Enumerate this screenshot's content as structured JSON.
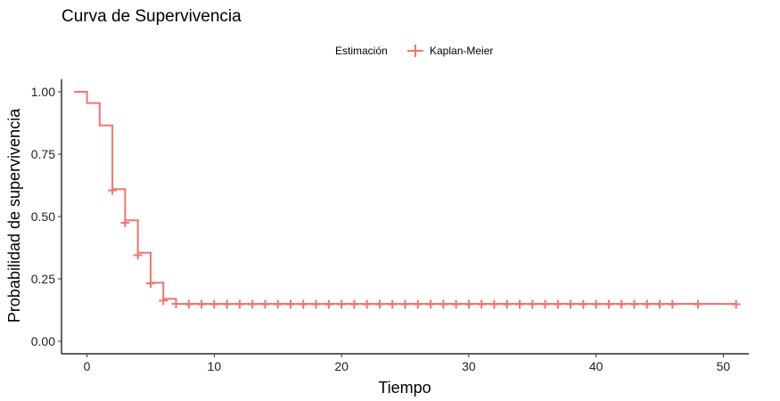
{
  "chart_data": {
    "type": "line",
    "step": true,
    "title": "Curva de Supervivencia",
    "xlabel": "Tiempo",
    "ylabel": "Probabilidad de supervivencia",
    "xlim": [
      -2,
      52
    ],
    "ylim": [
      -0.05,
      1.05
    ],
    "xticks": [
      0,
      10,
      20,
      30,
      40,
      50
    ],
    "yticks": [
      0.0,
      0.25,
      0.5,
      0.75,
      1.0
    ],
    "ytick_labels": [
      "0.00",
      "0.25",
      "0.50",
      "0.75",
      "1.00"
    ],
    "xtick_labels": [
      "0",
      "10",
      "20",
      "30",
      "40",
      "50"
    ],
    "grid": false,
    "legend": {
      "position": "top",
      "title": "Estimación",
      "entries": [
        "Kaplan-Meier"
      ]
    },
    "series": [
      {
        "name": "Kaplan-Meier",
        "color": "#F0766D",
        "steps": [
          [
            -1,
            1.0
          ],
          [
            0,
            0.955
          ],
          [
            1,
            0.865
          ],
          [
            2,
            0.61
          ],
          [
            3,
            0.485
          ],
          [
            4,
            0.355
          ],
          [
            5,
            0.235
          ],
          [
            6,
            0.17
          ],
          [
            7,
            0.15
          ],
          [
            51,
            0.15
          ]
        ],
        "censor_marks": [
          [
            2,
            0.605
          ],
          [
            3,
            0.475
          ],
          [
            4,
            0.345
          ],
          [
            5,
            0.232
          ],
          [
            6,
            0.163
          ],
          [
            7,
            0.15
          ],
          [
            8,
            0.148
          ],
          [
            9,
            0.148
          ],
          [
            10,
            0.148
          ],
          [
            11,
            0.148
          ],
          [
            12,
            0.148
          ],
          [
            13,
            0.148
          ],
          [
            14,
            0.148
          ],
          [
            15,
            0.148
          ],
          [
            16,
            0.148
          ],
          [
            17,
            0.148
          ],
          [
            18,
            0.148
          ],
          [
            19,
            0.148
          ],
          [
            20,
            0.148
          ],
          [
            21,
            0.148
          ],
          [
            22,
            0.148
          ],
          [
            23,
            0.148
          ],
          [
            24,
            0.148
          ],
          [
            25,
            0.148
          ],
          [
            26,
            0.148
          ],
          [
            27,
            0.148
          ],
          [
            28,
            0.148
          ],
          [
            29,
            0.148
          ],
          [
            30,
            0.148
          ],
          [
            31,
            0.148
          ],
          [
            32,
            0.148
          ],
          [
            33,
            0.148
          ],
          [
            34,
            0.148
          ],
          [
            35,
            0.148
          ],
          [
            36,
            0.148
          ],
          [
            37,
            0.148
          ],
          [
            38,
            0.148
          ],
          [
            39,
            0.148
          ],
          [
            40,
            0.148
          ],
          [
            41,
            0.148
          ],
          [
            42,
            0.148
          ],
          [
            43,
            0.148
          ],
          [
            44,
            0.148
          ],
          [
            45,
            0.148
          ],
          [
            46,
            0.148
          ],
          [
            48,
            0.148
          ],
          [
            51,
            0.148
          ]
        ]
      }
    ]
  }
}
